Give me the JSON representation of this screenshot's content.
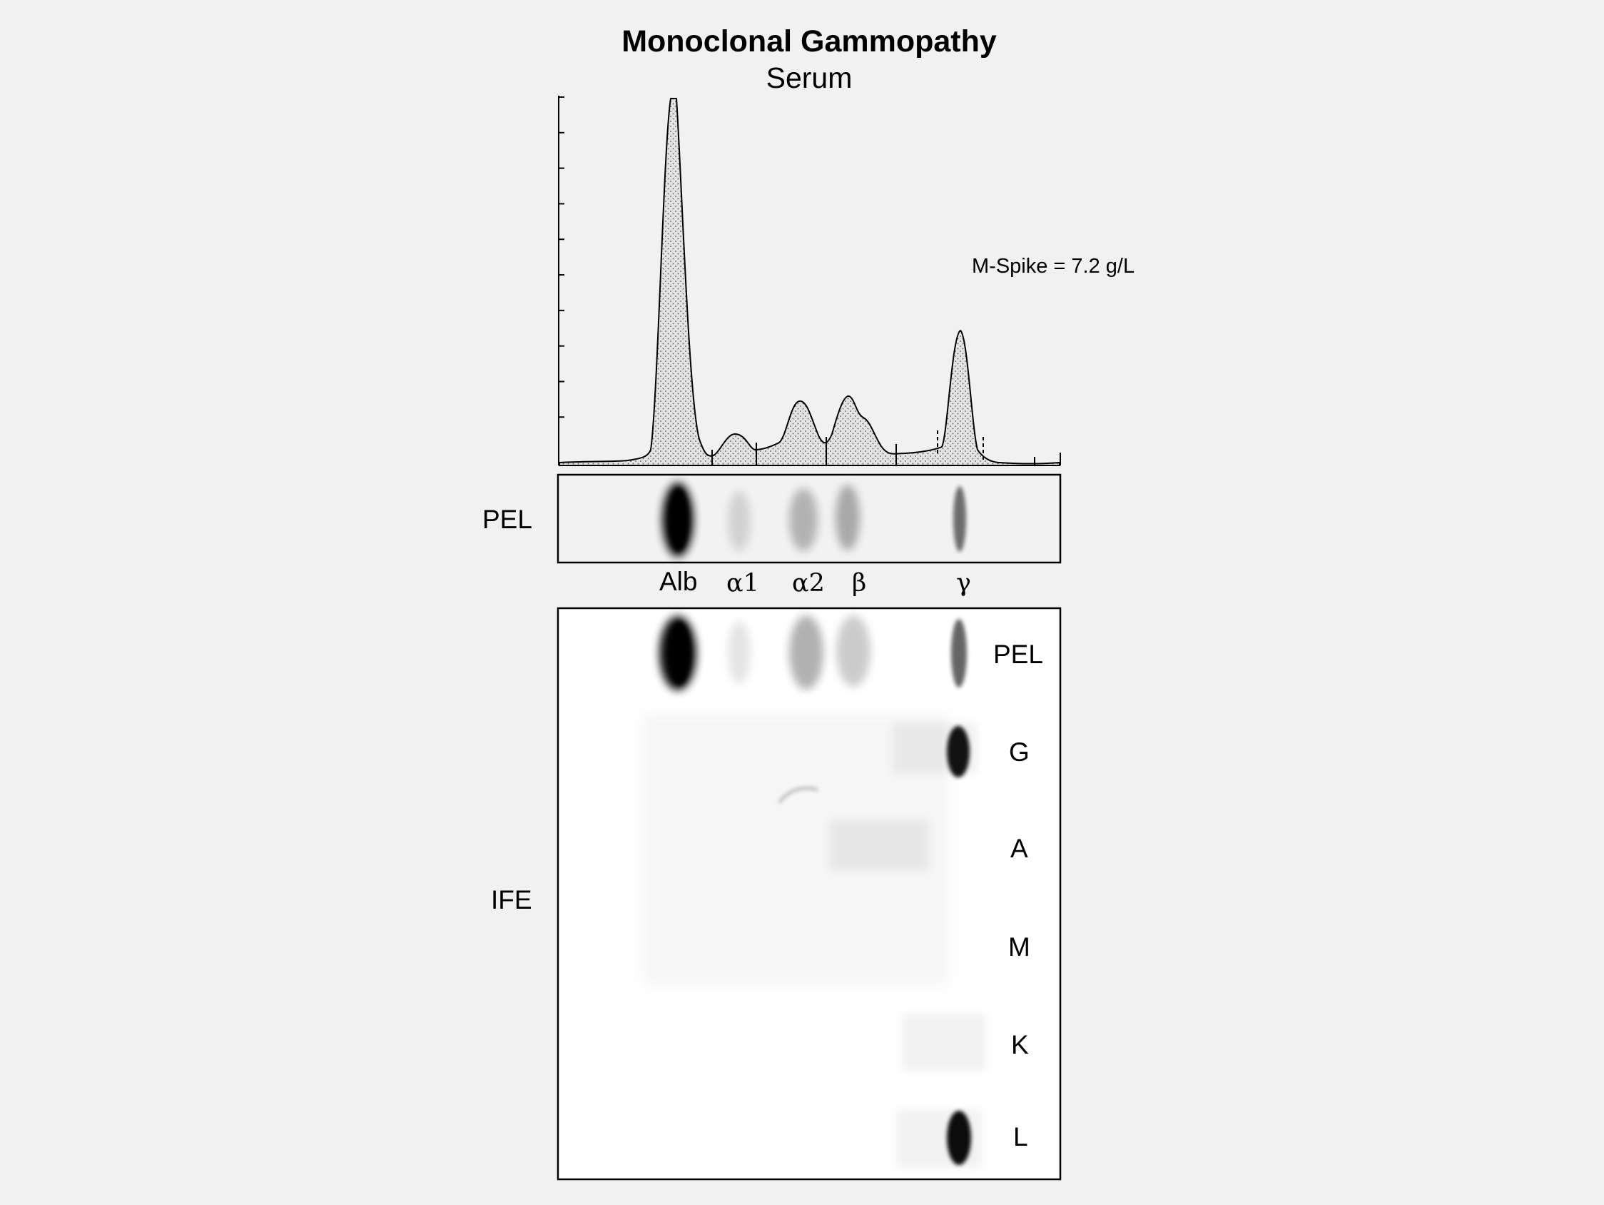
{
  "title": "Monoclonal Gammopathy",
  "subtitle": "Serum",
  "annotation": "M-Spike = 7.2 g/L",
  "pel_label": "PEL",
  "ife_label": "IFE",
  "fractions": [
    {
      "label": "Alb",
      "font": "sans"
    },
    {
      "label": "α1",
      "font": "serif"
    },
    {
      "label": "α2",
      "font": "serif"
    },
    {
      "label": "β",
      "font": "serif"
    },
    {
      "label": "γ",
      "font": "serif"
    }
  ],
  "pel_bands": [
    {
      "fraction": "Alb",
      "intensity": 0.95
    },
    {
      "fraction": "α1",
      "intensity": 0.18
    },
    {
      "fraction": "α2",
      "intensity": 0.32
    },
    {
      "fraction": "β",
      "intensity": 0.35
    },
    {
      "fraction": "γ",
      "intensity": 0.55
    }
  ],
  "ife_lanes": [
    {
      "label": "PEL",
      "bands": [
        {
          "fraction": "Alb",
          "intensity": 0.95
        },
        {
          "fraction": "α1",
          "intensity": 0.14
        },
        {
          "fraction": "α2",
          "intensity": 0.35
        },
        {
          "fraction": "β",
          "intensity": 0.26
        },
        {
          "fraction": "γ",
          "intensity": 0.6
        }
      ]
    },
    {
      "label": "G",
      "bands": [
        {
          "fraction": "γ",
          "intensity": 0.92
        }
      ]
    },
    {
      "label": "A",
      "bands": [
        {
          "fraction": "β",
          "intensity": 0.06
        }
      ]
    },
    {
      "label": "M",
      "bands": []
    },
    {
      "label": "K",
      "bands": [
        {
          "fraction": "γ",
          "intensity": 0.04
        }
      ]
    },
    {
      "label": "L",
      "bands": [
        {
          "fraction": "γ",
          "intensity": 0.95
        }
      ]
    }
  ],
  "densitometry": {
    "y_ticks": 10,
    "fill_pattern": "stipple",
    "line_color": "#000000",
    "fill_color": "#e4e4e4"
  }
}
